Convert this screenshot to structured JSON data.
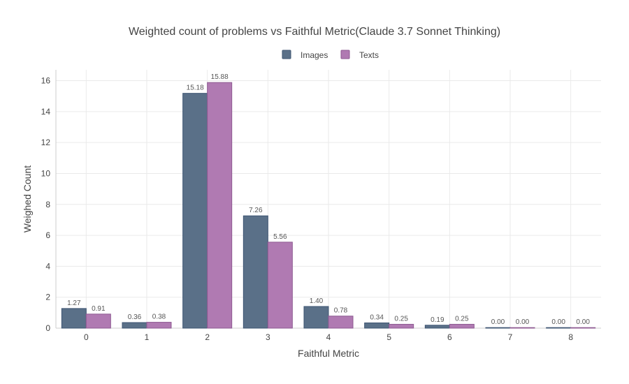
{
  "chart_data": {
    "type": "bar",
    "title": "Weighted count of problems vs Faithful Metric(Claude 3.7 Sonnet Thinking)",
    "xlabel": "Faithful Metric",
    "ylabel": "Weighed Count",
    "categories": [
      "0",
      "1",
      "2",
      "3",
      "4",
      "5",
      "6",
      "7",
      "8"
    ],
    "ylim": [
      0,
      16.7
    ],
    "yticks": [
      0,
      2,
      4,
      6,
      8,
      10,
      12,
      14,
      16
    ],
    "grid": true,
    "legend_position": "top-center",
    "series": [
      {
        "name": "Images",
        "color": "#5a7088",
        "stroke": "#3d5472",
        "values": [
          1.27,
          0.36,
          15.18,
          7.26,
          1.4,
          0.34,
          0.19,
          0.0,
          0.0
        ],
        "labels": [
          "1.27",
          "0.36",
          "15.18",
          "7.26",
          "1.40",
          "0.34",
          "0.19",
          "0.00",
          "0.00"
        ]
      },
      {
        "name": "Texts",
        "color": "#b07ab2",
        "stroke": "#8e5a92",
        "values": [
          0.91,
          0.38,
          15.88,
          5.56,
          0.78,
          0.25,
          0.25,
          0.0,
          0.0
        ],
        "labels": [
          "0.91",
          "0.38",
          "15.88",
          "5.56",
          "0.78",
          "0.25",
          "0.25",
          "0.00",
          "0.00"
        ]
      }
    ]
  }
}
